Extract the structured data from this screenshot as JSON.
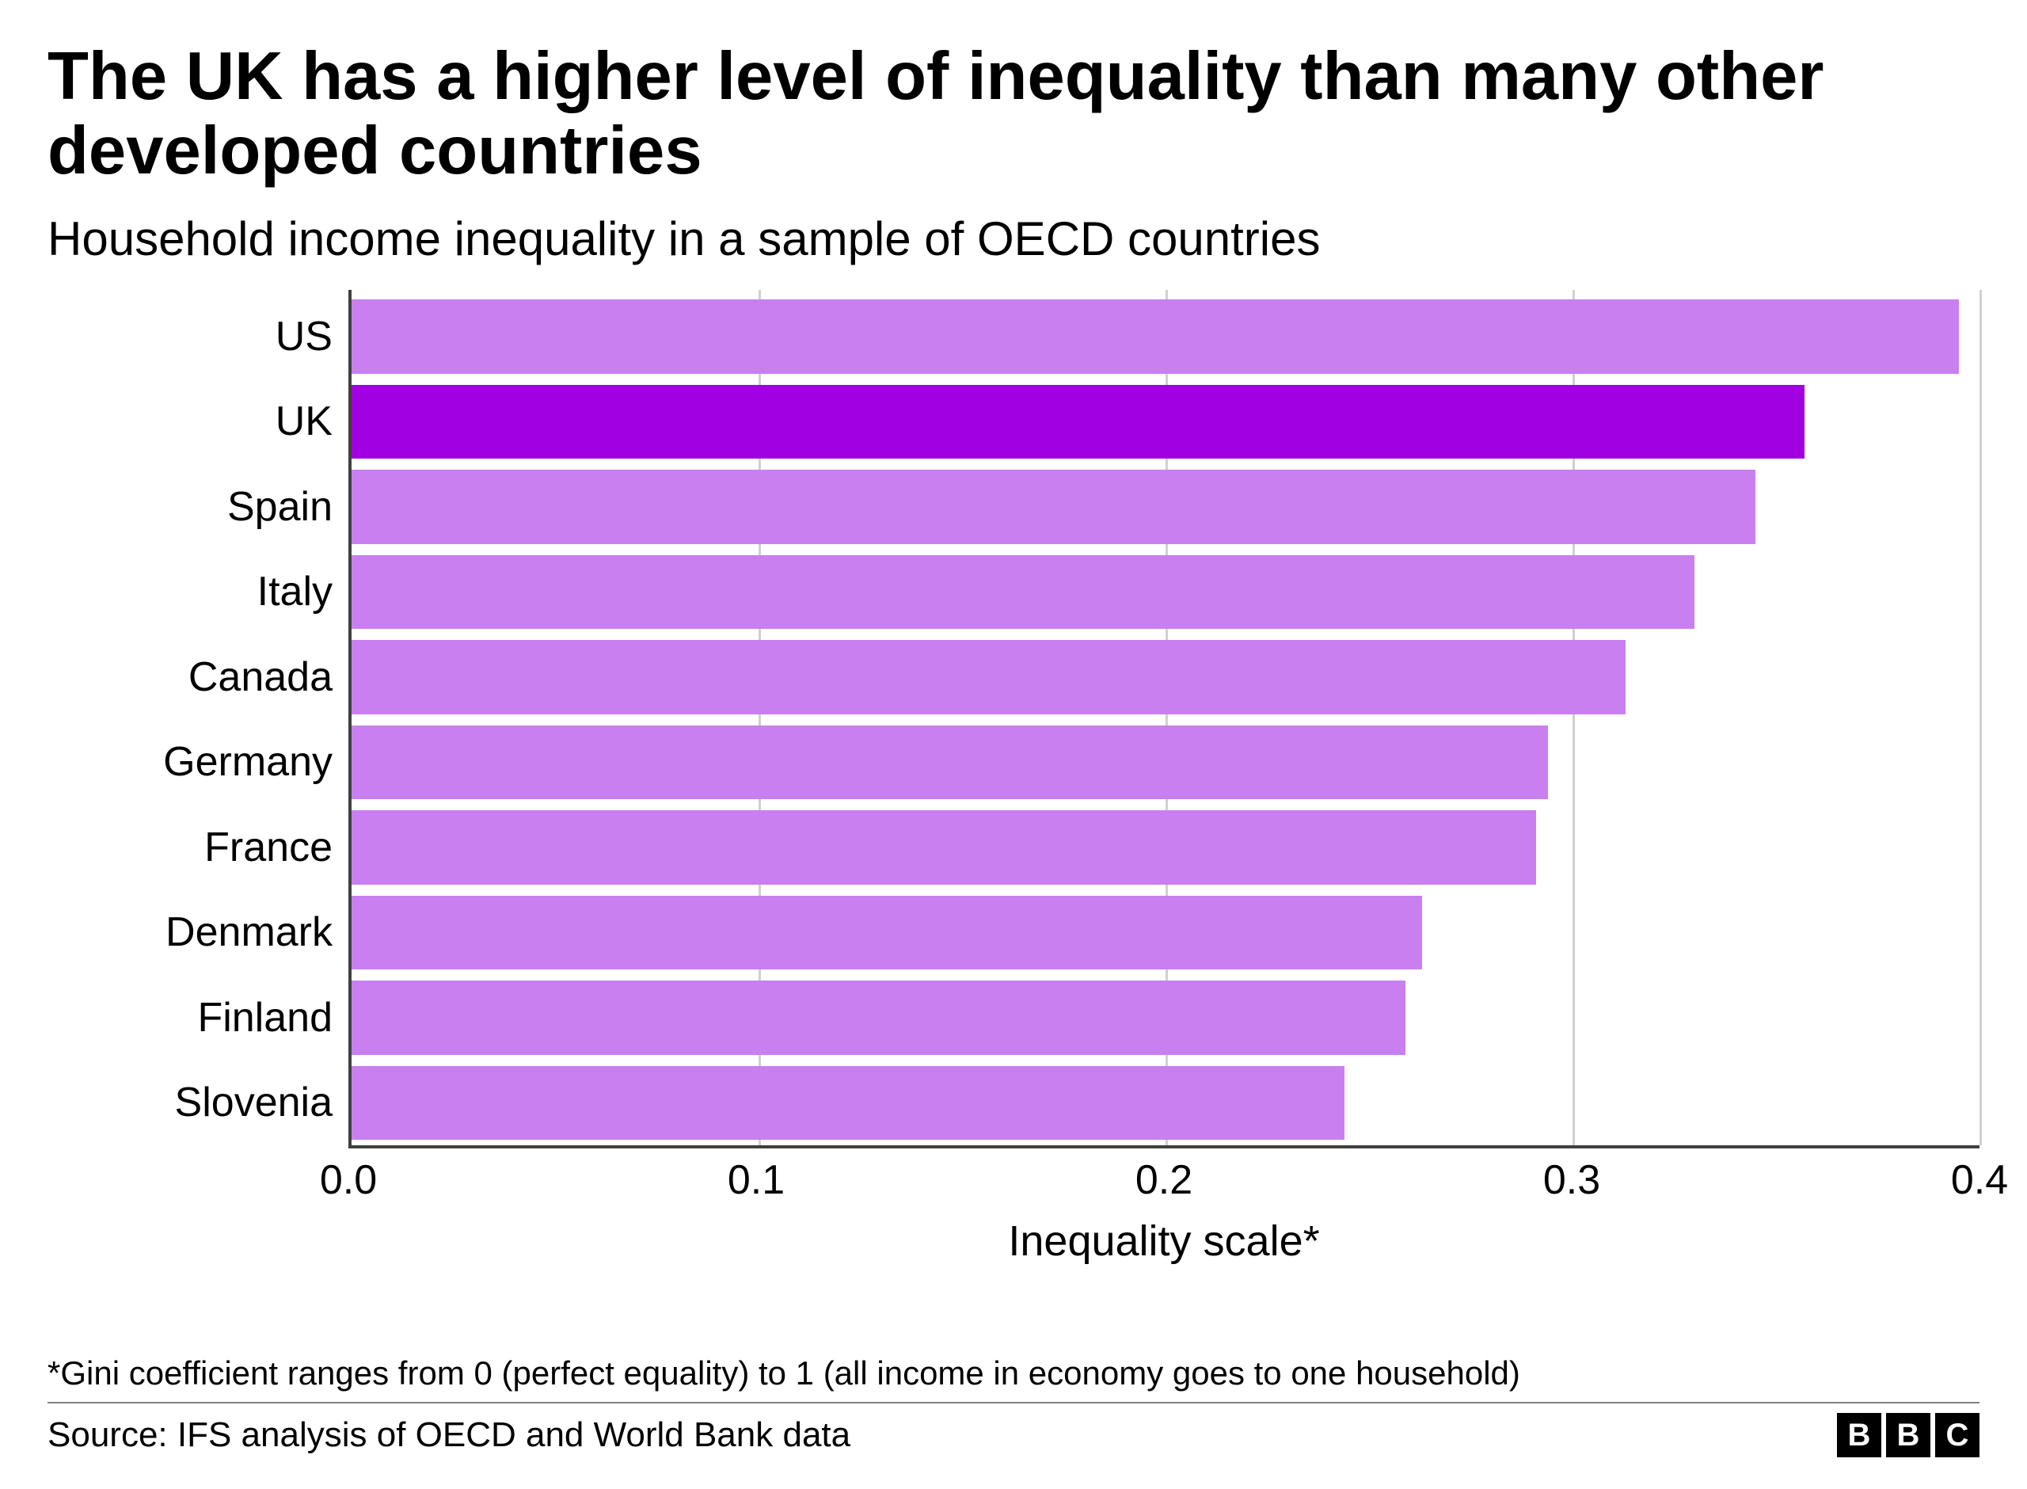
{
  "title": "The UK has a higher level of inequality than many other developed countries",
  "subtitle": "Household income inequality in a sample of OECD countries",
  "chart": {
    "type": "horizontal-bar",
    "x_axis_title": "Inequality scale*",
    "x_min": 0.0,
    "x_max": 0.4,
    "x_ticks": [
      {
        "value": 0.0,
        "label": "0.0"
      },
      {
        "value": 0.1,
        "label": "0.1"
      },
      {
        "value": 0.2,
        "label": "0.2"
      },
      {
        "value": 0.3,
        "label": "0.3"
      },
      {
        "value": 0.4,
        "label": "0.4"
      }
    ],
    "gridline_color": "#d0d0d0",
    "axis_color": "#404040",
    "background_color": "#ffffff",
    "default_bar_color": "#c97ff0",
    "highlight_bar_color": "#a100e0",
    "label_fontsize": 52,
    "tick_fontsize": 52,
    "bars": [
      {
        "label": "US",
        "value": 0.395,
        "highlight": false
      },
      {
        "label": "UK",
        "value": 0.357,
        "highlight": true
      },
      {
        "label": "Spain",
        "value": 0.345,
        "highlight": false
      },
      {
        "label": "Italy",
        "value": 0.33,
        "highlight": false
      },
      {
        "label": "Canada",
        "value": 0.313,
        "highlight": false
      },
      {
        "label": "Germany",
        "value": 0.294,
        "highlight": false
      },
      {
        "label": "France",
        "value": 0.291,
        "highlight": false
      },
      {
        "label": "Denmark",
        "value": 0.263,
        "highlight": false
      },
      {
        "label": "Finland",
        "value": 0.259,
        "highlight": false
      },
      {
        "label": "Slovenia",
        "value": 0.244,
        "highlight": false
      }
    ]
  },
  "footnote": "*Gini coefficient ranges from 0 (perfect equality) to 1 (all income in economy goes to one household)",
  "source": "Source: IFS analysis of OECD and World Bank data",
  "logo_letters": [
    "B",
    "B",
    "C"
  ]
}
